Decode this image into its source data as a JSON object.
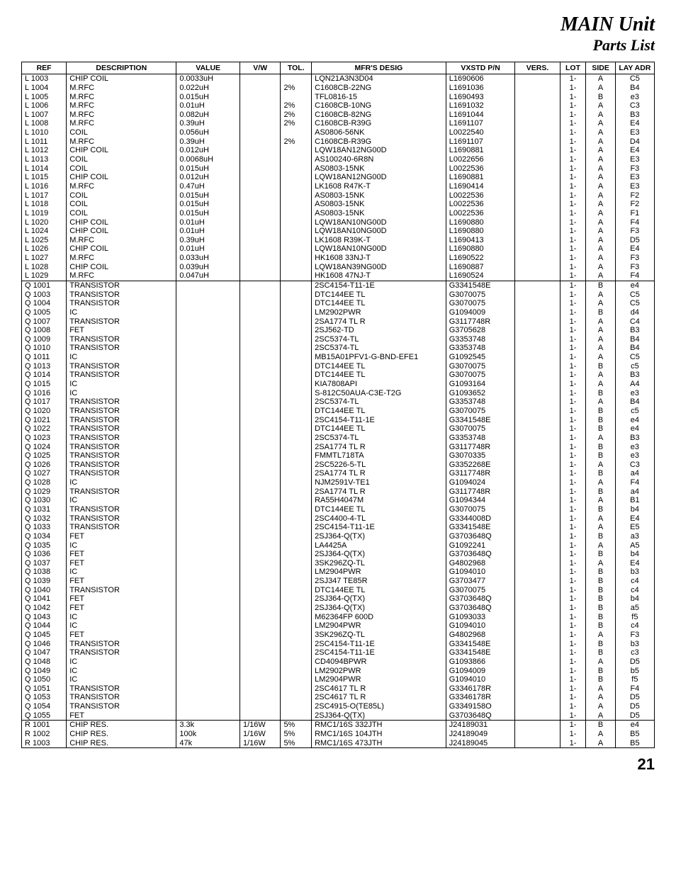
{
  "header": {
    "title_main": "MAIN Unit",
    "title_sub": "Parts List"
  },
  "page_number": "21",
  "columns": [
    {
      "key": "ref",
      "label": "REF",
      "cls": "col-ref"
    },
    {
      "key": "desc",
      "label": "DESCRIPTION",
      "cls": "col-desc"
    },
    {
      "key": "value",
      "label": "VALUE",
      "cls": "col-value"
    },
    {
      "key": "vw",
      "label": "V/W",
      "cls": "col-vw"
    },
    {
      "key": "tol",
      "label": "TOL.",
      "cls": "col-tol"
    },
    {
      "key": "mfr",
      "label": "MFR'S DESIG",
      "cls": "col-mfr"
    },
    {
      "key": "vxpn",
      "label": "VXSTD P/N",
      "cls": "col-vxpn"
    },
    {
      "key": "vers",
      "label": "VERS.",
      "cls": "col-vers"
    },
    {
      "key": "lot",
      "label": "LOT",
      "cls": "col-lot"
    },
    {
      "key": "side",
      "label": "SIDE",
      "cls": "col-side"
    },
    {
      "key": "lay",
      "label": "LAY ADR",
      "cls": "col-lay"
    }
  ],
  "rows": [
    {
      "section": true,
      "ref": "L 1003",
      "desc": "CHIP COIL",
      "value": "0.0033uH",
      "vw": "",
      "tol": "",
      "mfr": "LQN21A3N3D04",
      "vxpn": "L1690606",
      "vers": "",
      "lot": "1-",
      "side": "A",
      "lay": "C5"
    },
    {
      "ref": "L 1004",
      "desc": "M.RFC",
      "value": "0.022uH",
      "vw": "",
      "tol": "2%",
      "mfr": "C1608CB-22NG",
      "vxpn": "L1691036",
      "vers": "",
      "lot": "1-",
      "side": "A",
      "lay": "B4"
    },
    {
      "ref": "L 1005",
      "desc": "M.RFC",
      "value": "0.015uH",
      "vw": "",
      "tol": "",
      "mfr": "TFL0816-15",
      "vxpn": "L1690493",
      "vers": "",
      "lot": "1-",
      "side": "B",
      "lay": "e3"
    },
    {
      "ref": "L 1006",
      "desc": "M.RFC",
      "value": "0.01uH",
      "vw": "",
      "tol": "2%",
      "mfr": "C1608CB-10NG",
      "vxpn": "L1691032",
      "vers": "",
      "lot": "1-",
      "side": "A",
      "lay": "C3"
    },
    {
      "ref": "L 1007",
      "desc": "M.RFC",
      "value": "0.082uH",
      "vw": "",
      "tol": "2%",
      "mfr": "C1608CB-82NG",
      "vxpn": "L1691044",
      "vers": "",
      "lot": "1-",
      "side": "A",
      "lay": "B3"
    },
    {
      "ref": "L 1008",
      "desc": "M.RFC",
      "value": "0.39uH",
      "vw": "",
      "tol": "2%",
      "mfr": "C1608CB-R39G",
      "vxpn": "L1691107",
      "vers": "",
      "lot": "1-",
      "side": "A",
      "lay": "E4"
    },
    {
      "ref": "L 1010",
      "desc": "COIL",
      "value": "0.056uH",
      "vw": "",
      "tol": "",
      "mfr": "AS0806-56NK",
      "vxpn": "L0022540",
      "vers": "",
      "lot": "1-",
      "side": "A",
      "lay": "E3"
    },
    {
      "ref": "L 1011",
      "desc": "M.RFC",
      "value": "0.39uH",
      "vw": "",
      "tol": "2%",
      "mfr": "C1608CB-R39G",
      "vxpn": "L1691107",
      "vers": "",
      "lot": "1-",
      "side": "A",
      "lay": "D4"
    },
    {
      "ref": "L 1012",
      "desc": "CHIP COIL",
      "value": "0.012uH",
      "vw": "",
      "tol": "",
      "mfr": "LQW18AN12NG00D",
      "vxpn": "L1690881",
      "vers": "",
      "lot": "1-",
      "side": "A",
      "lay": "E4"
    },
    {
      "ref": "L 1013",
      "desc": "COIL",
      "value": "0.0068uH",
      "vw": "",
      "tol": "",
      "mfr": "AS100240-6R8N",
      "vxpn": "L0022656",
      "vers": "",
      "lot": "1-",
      "side": "A",
      "lay": "E3"
    },
    {
      "ref": "L 1014",
      "desc": "COIL",
      "value": "0.015uH",
      "vw": "",
      "tol": "",
      "mfr": "AS0803-15NK",
      "vxpn": "L0022536",
      "vers": "",
      "lot": "1-",
      "side": "A",
      "lay": "F3"
    },
    {
      "ref": "L 1015",
      "desc": "CHIP COIL",
      "value": "0.012uH",
      "vw": "",
      "tol": "",
      "mfr": "LQW18AN12NG00D",
      "vxpn": "L1690881",
      "vers": "",
      "lot": "1-",
      "side": "A",
      "lay": "E3"
    },
    {
      "ref": "L 1016",
      "desc": "M.RFC",
      "value": "0.47uH",
      "vw": "",
      "tol": "",
      "mfr": "LK1608 R47K-T",
      "vxpn": "L1690414",
      "vers": "",
      "lot": "1-",
      "side": "A",
      "lay": "E3"
    },
    {
      "ref": "L 1017",
      "desc": "COIL",
      "value": "0.015uH",
      "vw": "",
      "tol": "",
      "mfr": "AS0803-15NK",
      "vxpn": "L0022536",
      "vers": "",
      "lot": "1-",
      "side": "A",
      "lay": "F2"
    },
    {
      "ref": "L 1018",
      "desc": "COIL",
      "value": "0.015uH",
      "vw": "",
      "tol": "",
      "mfr": "AS0803-15NK",
      "vxpn": "L0022536",
      "vers": "",
      "lot": "1-",
      "side": "A",
      "lay": "F2"
    },
    {
      "ref": "L 1019",
      "desc": "COIL",
      "value": "0.015uH",
      "vw": "",
      "tol": "",
      "mfr": "AS0803-15NK",
      "vxpn": "L0022536",
      "vers": "",
      "lot": "1-",
      "side": "A",
      "lay": "F1"
    },
    {
      "ref": "L 1020",
      "desc": "CHIP COIL",
      "value": "0.01uH",
      "vw": "",
      "tol": "",
      "mfr": "LQW18AN10NG00D",
      "vxpn": "L1690880",
      "vers": "",
      "lot": "1-",
      "side": "A",
      "lay": "F4"
    },
    {
      "ref": "L 1024",
      "desc": "CHIP COIL",
      "value": "0.01uH",
      "vw": "",
      "tol": "",
      "mfr": "LQW18AN10NG00D",
      "vxpn": "L1690880",
      "vers": "",
      "lot": "1-",
      "side": "A",
      "lay": "F3"
    },
    {
      "ref": "L 1025",
      "desc": "M.RFC",
      "value": "0.39uH",
      "vw": "",
      "tol": "",
      "mfr": "LK1608 R39K-T",
      "vxpn": "L1690413",
      "vers": "",
      "lot": "1-",
      "side": "A",
      "lay": "D5"
    },
    {
      "ref": "L 1026",
      "desc": "CHIP COIL",
      "value": "0.01uH",
      "vw": "",
      "tol": "",
      "mfr": "LQW18AN10NG00D",
      "vxpn": "L1690880",
      "vers": "",
      "lot": "1-",
      "side": "A",
      "lay": "E4"
    },
    {
      "ref": "L 1027",
      "desc": "M.RFC",
      "value": "0.033uH",
      "vw": "",
      "tol": "",
      "mfr": "HK1608 33NJ-T",
      "vxpn": "L1690522",
      "vers": "",
      "lot": "1-",
      "side": "A",
      "lay": "F3"
    },
    {
      "ref": "L 1028",
      "desc": "CHIP COIL",
      "value": "0.039uH",
      "vw": "",
      "tol": "",
      "mfr": "LQW18AN39NG00D",
      "vxpn": "L1690887",
      "vers": "",
      "lot": "1-",
      "side": "A",
      "lay": "F3"
    },
    {
      "ref": "L 1029",
      "desc": "M.RFC",
      "value": "0.047uH",
      "vw": "",
      "tol": "",
      "mfr": "HK1608 47NJ-T",
      "vxpn": "L1690524",
      "vers": "",
      "lot": "1-",
      "side": "A",
      "lay": "F4"
    },
    {
      "section": true,
      "ref": "Q 1001",
      "desc": "TRANSISTOR",
      "value": "",
      "vw": "",
      "tol": "",
      "mfr": "2SC4154-T11-1E",
      "vxpn": "G3341548E",
      "vers": "",
      "lot": "1-",
      "side": "B",
      "lay": "e4"
    },
    {
      "ref": "Q 1003",
      "desc": "TRANSISTOR",
      "value": "",
      "vw": "",
      "tol": "",
      "mfr": "DTC144EE TL",
      "vxpn": "G3070075",
      "vers": "",
      "lot": "1-",
      "side": "A",
      "lay": "C5"
    },
    {
      "ref": "Q 1004",
      "desc": "TRANSISTOR",
      "value": "",
      "vw": "",
      "tol": "",
      "mfr": "DTC144EE TL",
      "vxpn": "G3070075",
      "vers": "",
      "lot": "1-",
      "side": "A",
      "lay": "C5"
    },
    {
      "ref": "Q 1005",
      "desc": "IC",
      "value": "",
      "vw": "",
      "tol": "",
      "mfr": "LM2902PWR",
      "vxpn": "G1094009",
      "vers": "",
      "lot": "1-",
      "side": "B",
      "lay": "d4"
    },
    {
      "ref": "Q 1007",
      "desc": "TRANSISTOR",
      "value": "",
      "vw": "",
      "tol": "",
      "mfr": "2SA1774 TL R",
      "vxpn": "G3117748R",
      "vers": "",
      "lot": "1-",
      "side": "A",
      "lay": "C4"
    },
    {
      "ref": "Q 1008",
      "desc": "FET",
      "value": "",
      "vw": "",
      "tol": "",
      "mfr": "2SJ562-TD",
      "vxpn": "G3705628",
      "vers": "",
      "lot": "1-",
      "side": "A",
      "lay": "B3"
    },
    {
      "ref": "Q 1009",
      "desc": "TRANSISTOR",
      "value": "",
      "vw": "",
      "tol": "",
      "mfr": "2SC5374-TL",
      "vxpn": "G3353748",
      "vers": "",
      "lot": "1-",
      "side": "A",
      "lay": "B4"
    },
    {
      "ref": "Q 1010",
      "desc": "TRANSISTOR",
      "value": "",
      "vw": "",
      "tol": "",
      "mfr": "2SC5374-TL",
      "vxpn": "G3353748",
      "vers": "",
      "lot": "1-",
      "side": "A",
      "lay": "B4"
    },
    {
      "ref": "Q 1011",
      "desc": "IC",
      "value": "",
      "vw": "",
      "tol": "",
      "mfr": "MB15A01PFV1-G-BND-EFE1",
      "vxpn": "G1092545",
      "vers": "",
      "lot": "1-",
      "side": "A",
      "lay": "C5"
    },
    {
      "ref": "Q 1013",
      "desc": "TRANSISTOR",
      "value": "",
      "vw": "",
      "tol": "",
      "mfr": "DTC144EE TL",
      "vxpn": "G3070075",
      "vers": "",
      "lot": "1-",
      "side": "B",
      "lay": "c5"
    },
    {
      "ref": "Q 1014",
      "desc": "TRANSISTOR",
      "value": "",
      "vw": "",
      "tol": "",
      "mfr": "DTC144EE TL",
      "vxpn": "G3070075",
      "vers": "",
      "lot": "1-",
      "side": "A",
      "lay": "B3"
    },
    {
      "ref": "Q 1015",
      "desc": "IC",
      "value": "",
      "vw": "",
      "tol": "",
      "mfr": "KIA7808API",
      "vxpn": "G1093164",
      "vers": "",
      "lot": "1-",
      "side": "A",
      "lay": "A4"
    },
    {
      "ref": "Q 1016",
      "desc": "IC",
      "value": "",
      "vw": "",
      "tol": "",
      "mfr": "S-812C50AUA-C3E-T2G",
      "vxpn": "G1093652",
      "vers": "",
      "lot": "1-",
      "side": "B",
      "lay": "e3"
    },
    {
      "ref": "Q 1017",
      "desc": "TRANSISTOR",
      "value": "",
      "vw": "",
      "tol": "",
      "mfr": "2SC5374-TL",
      "vxpn": "G3353748",
      "vers": "",
      "lot": "1-",
      "side": "A",
      "lay": "B4"
    },
    {
      "ref": "Q 1020",
      "desc": "TRANSISTOR",
      "value": "",
      "vw": "",
      "tol": "",
      "mfr": "DTC144EE TL",
      "vxpn": "G3070075",
      "vers": "",
      "lot": "1-",
      "side": "B",
      "lay": "c5"
    },
    {
      "ref": "Q 1021",
      "desc": "TRANSISTOR",
      "value": "",
      "vw": "",
      "tol": "",
      "mfr": "2SC4154-T11-1E",
      "vxpn": "G3341548E",
      "vers": "",
      "lot": "1-",
      "side": "B",
      "lay": "e4"
    },
    {
      "ref": "Q 1022",
      "desc": "TRANSISTOR",
      "value": "",
      "vw": "",
      "tol": "",
      "mfr": "DTC144EE TL",
      "vxpn": "G3070075",
      "vers": "",
      "lot": "1-",
      "side": "B",
      "lay": "e4"
    },
    {
      "ref": "Q 1023",
      "desc": "TRANSISTOR",
      "value": "",
      "vw": "",
      "tol": "",
      "mfr": "2SC5374-TL",
      "vxpn": "G3353748",
      "vers": "",
      "lot": "1-",
      "side": "A",
      "lay": "B3"
    },
    {
      "ref": "Q 1024",
      "desc": "TRANSISTOR",
      "value": "",
      "vw": "",
      "tol": "",
      "mfr": "2SA1774 TL R",
      "vxpn": "G3117748R",
      "vers": "",
      "lot": "1-",
      "side": "B",
      "lay": "e3"
    },
    {
      "ref": "Q 1025",
      "desc": "TRANSISTOR",
      "value": "",
      "vw": "",
      "tol": "",
      "mfr": "FMMTL718TA",
      "vxpn": "G3070335",
      "vers": "",
      "lot": "1-",
      "side": "B",
      "lay": "e3"
    },
    {
      "ref": "Q 1026",
      "desc": "TRANSISTOR",
      "value": "",
      "vw": "",
      "tol": "",
      "mfr": "2SC5226-5-TL",
      "vxpn": "G3352268E",
      "vers": "",
      "lot": "1-",
      "side": "A",
      "lay": "C3"
    },
    {
      "ref": "Q 1027",
      "desc": "TRANSISTOR",
      "value": "",
      "vw": "",
      "tol": "",
      "mfr": "2SA1774 TL R",
      "vxpn": "G3117748R",
      "vers": "",
      "lot": "1-",
      "side": "B",
      "lay": "a4"
    },
    {
      "ref": "Q 1028",
      "desc": "IC",
      "value": "",
      "vw": "",
      "tol": "",
      "mfr": "NJM2591V-TE1",
      "vxpn": "G1094024",
      "vers": "",
      "lot": "1-",
      "side": "A",
      "lay": "F4"
    },
    {
      "ref": "Q 1029",
      "desc": "TRANSISTOR",
      "value": "",
      "vw": "",
      "tol": "",
      "mfr": "2SA1774 TL R",
      "vxpn": "G3117748R",
      "vers": "",
      "lot": "1-",
      "side": "B",
      "lay": "a4"
    },
    {
      "ref": "Q 1030",
      "desc": "IC",
      "value": "",
      "vw": "",
      "tol": "",
      "mfr": "RA55H4047M",
      "vxpn": "G1094344",
      "vers": "",
      "lot": "1-",
      "side": "A",
      "lay": "B1"
    },
    {
      "ref": "Q 1031",
      "desc": "TRANSISTOR",
      "value": "",
      "vw": "",
      "tol": "",
      "mfr": "DTC144EE TL",
      "vxpn": "G3070075",
      "vers": "",
      "lot": "1-",
      "side": "B",
      "lay": "b4"
    },
    {
      "ref": "Q 1032",
      "desc": "TRANSISTOR",
      "value": "",
      "vw": "",
      "tol": "",
      "mfr": "2SC4400-4-TL",
      "vxpn": "G3344008D",
      "vers": "",
      "lot": "1-",
      "side": "A",
      "lay": "E4"
    },
    {
      "ref": "Q 1033",
      "desc": "TRANSISTOR",
      "value": "",
      "vw": "",
      "tol": "",
      "mfr": "2SC4154-T11-1E",
      "vxpn": "G3341548E",
      "vers": "",
      "lot": "1-",
      "side": "A",
      "lay": "E5"
    },
    {
      "ref": "Q 1034",
      "desc": "FET",
      "value": "",
      "vw": "",
      "tol": "",
      "mfr": "2SJ364-Q(TX)",
      "vxpn": "G3703648Q",
      "vers": "",
      "lot": "1-",
      "side": "B",
      "lay": "a3"
    },
    {
      "ref": "Q 1035",
      "desc": "IC",
      "value": "",
      "vw": "",
      "tol": "",
      "mfr": "LA4425A",
      "vxpn": "G1092241",
      "vers": "",
      "lot": "1-",
      "side": "A",
      "lay": "A5"
    },
    {
      "ref": "Q 1036",
      "desc": "FET",
      "value": "",
      "vw": "",
      "tol": "",
      "mfr": "2SJ364-Q(TX)",
      "vxpn": "G3703648Q",
      "vers": "",
      "lot": "1-",
      "side": "B",
      "lay": "b4"
    },
    {
      "ref": "Q 1037",
      "desc": "FET",
      "value": "",
      "vw": "",
      "tol": "",
      "mfr": "3SK296ZQ-TL",
      "vxpn": "G4802968",
      "vers": "",
      "lot": "1-",
      "side": "A",
      "lay": "E4"
    },
    {
      "ref": "Q 1038",
      "desc": "IC",
      "value": "",
      "vw": "",
      "tol": "",
      "mfr": "LM2904PWR",
      "vxpn": "G1094010",
      "vers": "",
      "lot": "1-",
      "side": "B",
      "lay": "b3"
    },
    {
      "ref": "Q 1039",
      "desc": "FET",
      "value": "",
      "vw": "",
      "tol": "",
      "mfr": "2SJ347 TE85R",
      "vxpn": "G3703477",
      "vers": "",
      "lot": "1-",
      "side": "B",
      "lay": "c4"
    },
    {
      "ref": "Q 1040",
      "desc": "TRANSISTOR",
      "value": "",
      "vw": "",
      "tol": "",
      "mfr": "DTC144EE TL",
      "vxpn": "G3070075",
      "vers": "",
      "lot": "1-",
      "side": "B",
      "lay": "c4"
    },
    {
      "ref": "Q 1041",
      "desc": "FET",
      "value": "",
      "vw": "",
      "tol": "",
      "mfr": "2SJ364-Q(TX)",
      "vxpn": "G3703648Q",
      "vers": "",
      "lot": "1-",
      "side": "B",
      "lay": "b4"
    },
    {
      "ref": "Q 1042",
      "desc": "FET",
      "value": "",
      "vw": "",
      "tol": "",
      "mfr": "2SJ364-Q(TX)",
      "vxpn": "G3703648Q",
      "vers": "",
      "lot": "1-",
      "side": "B",
      "lay": "a5"
    },
    {
      "ref": "Q 1043",
      "desc": "IC",
      "value": "",
      "vw": "",
      "tol": "",
      "mfr": "M62364FP 600D",
      "vxpn": "G1093033",
      "vers": "",
      "lot": "1-",
      "side": "B",
      "lay": "f5"
    },
    {
      "ref": "Q 1044",
      "desc": "IC",
      "value": "",
      "vw": "",
      "tol": "",
      "mfr": "LM2904PWR",
      "vxpn": "G1094010",
      "vers": "",
      "lot": "1-",
      "side": "B",
      "lay": "c4"
    },
    {
      "ref": "Q 1045",
      "desc": "FET",
      "value": "",
      "vw": "",
      "tol": "",
      "mfr": "3SK296ZQ-TL",
      "vxpn": "G4802968",
      "vers": "",
      "lot": "1-",
      "side": "A",
      "lay": "F3"
    },
    {
      "ref": "Q 1046",
      "desc": "TRANSISTOR",
      "value": "",
      "vw": "",
      "tol": "",
      "mfr": "2SC4154-T11-1E",
      "vxpn": "G3341548E",
      "vers": "",
      "lot": "1-",
      "side": "B",
      "lay": "b3"
    },
    {
      "ref": "Q 1047",
      "desc": "TRANSISTOR",
      "value": "",
      "vw": "",
      "tol": "",
      "mfr": "2SC4154-T11-1E",
      "vxpn": "G3341548E",
      "vers": "",
      "lot": "1-",
      "side": "B",
      "lay": "c3"
    },
    {
      "ref": "Q 1048",
      "desc": "IC",
      "value": "",
      "vw": "",
      "tol": "",
      "mfr": "CD4094BPWR",
      "vxpn": "G1093866",
      "vers": "",
      "lot": "1-",
      "side": "A",
      "lay": "D5"
    },
    {
      "ref": "Q 1049",
      "desc": "IC",
      "value": "",
      "vw": "",
      "tol": "",
      "mfr": "LM2902PWR",
      "vxpn": "G1094009",
      "vers": "",
      "lot": "1-",
      "side": "B",
      "lay": "b5"
    },
    {
      "ref": "Q 1050",
      "desc": "IC",
      "value": "",
      "vw": "",
      "tol": "",
      "mfr": "LM2904PWR",
      "vxpn": "G1094010",
      "vers": "",
      "lot": "1-",
      "side": "B",
      "lay": "f5"
    },
    {
      "ref": "Q 1051",
      "desc": "TRANSISTOR",
      "value": "",
      "vw": "",
      "tol": "",
      "mfr": "2SC4617 TL R",
      "vxpn": "G3346178R",
      "vers": "",
      "lot": "1-",
      "side": "A",
      "lay": "F4"
    },
    {
      "ref": "Q 1053",
      "desc": "TRANSISTOR",
      "value": "",
      "vw": "",
      "tol": "",
      "mfr": "2SC4617 TL R",
      "vxpn": "G3346178R",
      "vers": "",
      "lot": "1-",
      "side": "A",
      "lay": "D5"
    },
    {
      "ref": "Q 1054",
      "desc": "TRANSISTOR",
      "value": "",
      "vw": "",
      "tol": "",
      "mfr": "2SC4915-O(TE85L)",
      "vxpn": "G3349158O",
      "vers": "",
      "lot": "1-",
      "side": "A",
      "lay": "D5"
    },
    {
      "ref": "Q 1055",
      "desc": "FET",
      "value": "",
      "vw": "",
      "tol": "",
      "mfr": "2SJ364-Q(TX)",
      "vxpn": "G3703648Q",
      "vers": "",
      "lot": "1-",
      "side": "A",
      "lay": "D5"
    },
    {
      "section": true,
      "ref": "R 1001",
      "desc": "CHIP RES.",
      "value": "3.3k",
      "vw": "1/16W",
      "tol": "5%",
      "mfr": "RMC1/16S 332JTH",
      "vxpn": "J24189031",
      "vers": "",
      "lot": "1-",
      "side": "B",
      "lay": "e4"
    },
    {
      "ref": "R 1002",
      "desc": "CHIP RES.",
      "value": "100k",
      "vw": "1/16W",
      "tol": "5%",
      "mfr": "RMC1/16S 104JTH",
      "vxpn": "J24189049",
      "vers": "",
      "lot": "1-",
      "side": "A",
      "lay": "B5"
    },
    {
      "ref": "R 1003",
      "desc": "CHIP RES.",
      "value": "47k",
      "vw": "1/16W",
      "tol": "5%",
      "mfr": "RMC1/16S 473JTH",
      "vxpn": "J24189045",
      "vers": "",
      "lot": "1-",
      "side": "A",
      "lay": "B5"
    }
  ]
}
